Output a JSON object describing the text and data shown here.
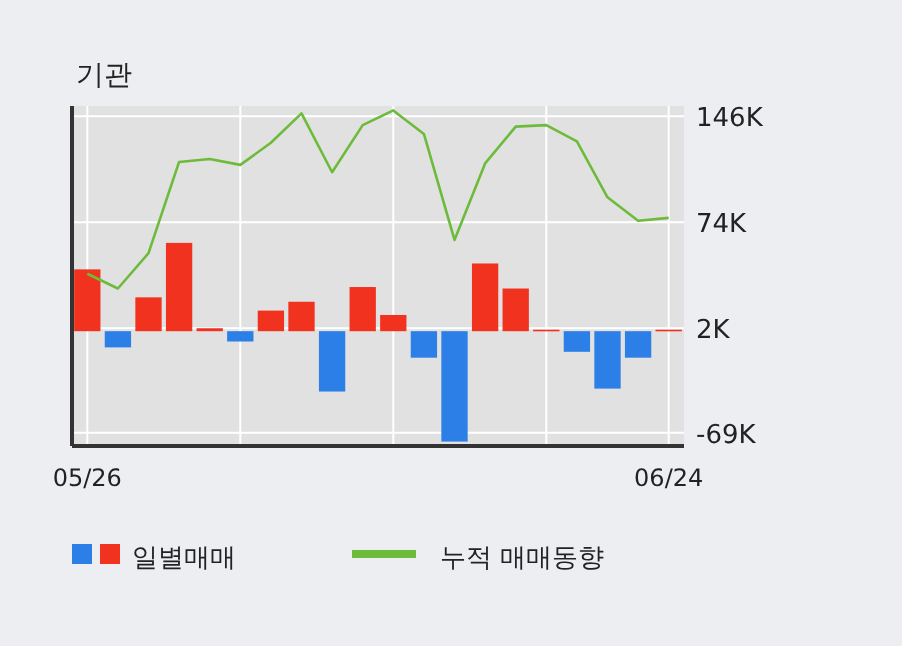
{
  "chart_data": {
    "type": "bar",
    "title": "기관",
    "categories": [
      "05/26",
      null,
      null,
      null,
      null,
      null,
      null,
      null,
      null,
      null,
      null,
      null,
      null,
      null,
      null,
      null,
      null,
      null,
      null,
      "06/24"
    ],
    "series": [
      {
        "name": "일별매매",
        "colors": [
          "#f0321e",
          "#2b7fe6",
          "#f0321e",
          "#f0321e",
          "#f0321e",
          "#2b7fe6",
          "#f0321e",
          "#f0321e",
          "#2b7fe6",
          "#f0321e",
          "#f0321e",
          "#2b7fe6",
          "#2b7fe6",
          "#f0321e",
          "#f0321e",
          "#f0321e",
          "#2b7fe6",
          "#2b7fe6",
          "#2b7fe6",
          "#f0321e"
        ],
        "values": [
          42,
          -11,
          23,
          60,
          2,
          -7,
          14,
          20,
          -41,
          30,
          11,
          -18,
          -75,
          46,
          29,
          1,
          -14,
          -39,
          -18,
          1
        ]
      },
      {
        "name": "누적 매매동향",
        "type": "line",
        "color": "#6dbb3a",
        "values": [
          39,
          29,
          53,
          115,
          117,
          113,
          128,
          148,
          108,
          140,
          150,
          134,
          62,
          114,
          139,
          140,
          129,
          91,
          75,
          77
        ]
      }
    ],
    "ylim": [
      -78,
      153
    ],
    "yticks": [
      {
        "value": 146,
        "label": "146K"
      },
      {
        "value": 74,
        "label": "74K"
      },
      {
        "value": 2,
        "label": "2K"
      },
      {
        "value": -69,
        "label": "-69K"
      }
    ],
    "grid": true,
    "legend": "bottom"
  }
}
